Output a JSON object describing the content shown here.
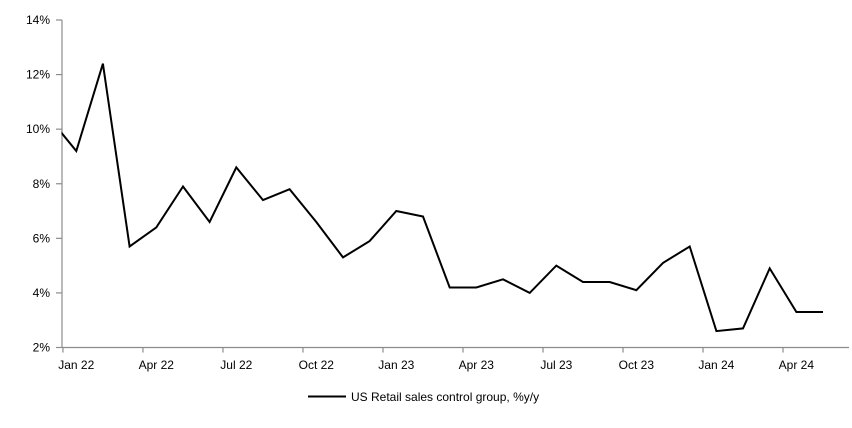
{
  "chart_data": {
    "type": "line",
    "title": "",
    "xlabel": "",
    "ylabel": "",
    "x": [
      "Dec 21",
      "Jan 22",
      "Feb 22",
      "Mar 22",
      "Apr 22",
      "May 22",
      "Jun 22",
      "Jul 22",
      "Aug 22",
      "Sep 22",
      "Oct 22",
      "Nov 22",
      "Dec 22",
      "Jan 23",
      "Feb 23",
      "Mar 23",
      "Apr 23",
      "May 23",
      "Jun 23",
      "Jul 23",
      "Aug 23",
      "Sep 23",
      "Oct 23",
      "Nov 23",
      "Dec 23",
      "Jan 24",
      "Feb 24",
      "Mar 24",
      "Apr 24",
      "May 24"
    ],
    "series": [
      {
        "name": "US Retail sales control group, %y/y",
        "values": [
          10.4,
          9.2,
          12.4,
          5.7,
          6.4,
          7.9,
          6.6,
          8.6,
          7.4,
          7.8,
          6.6,
          5.3,
          5.9,
          7.0,
          6.8,
          4.2,
          4.2,
          4.5,
          4.0,
          5.0,
          4.4,
          4.4,
          4.1,
          5.1,
          5.7,
          2.6,
          2.7,
          4.9,
          3.3,
          3.3
        ]
      }
    ],
    "first_point_clipped_at_left_edge": true,
    "x_axis": {
      "tick_labels": [
        "Jan 22",
        "Apr 22",
        "Jul 22",
        "Oct 22",
        "Jan 23",
        "Apr 23",
        "Jul 23",
        "Oct 23",
        "Jan 24",
        "Apr 24"
      ],
      "label_every_n_months": 3,
      "first_labeled_month_index": 1
    },
    "y_axis": {
      "min": 2,
      "max": 14,
      "tick_step": 2,
      "tick_values": [
        2,
        4,
        6,
        8,
        10,
        12,
        14
      ],
      "tick_suffix": "%"
    },
    "legend": {
      "label": "US Retail sales control group, %y/y",
      "marker": "line",
      "position": "bottom-center"
    },
    "grid": false,
    "colors": {
      "background": "#ffffff",
      "series_line": "#000000",
      "axis": "#8c8c8c",
      "text": "#000000"
    }
  }
}
